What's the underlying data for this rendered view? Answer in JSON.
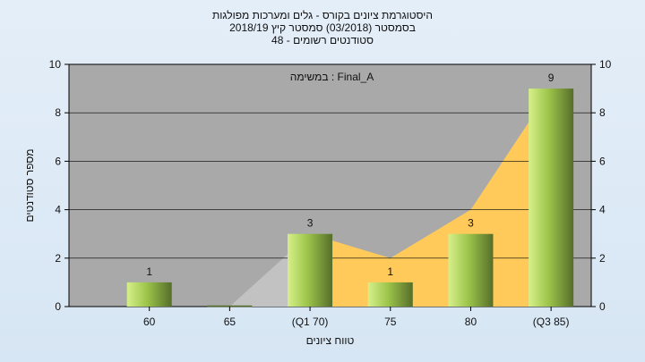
{
  "chart_data": {
    "type": "bar",
    "title_lines": [
      "היסטוגרמת ציונים בקורס - גלים ומערכות מפולגות",
      "בסמסטר  (03/2018)  סמסטר קיץ  2018/19",
      "סטודנטים רשומים - 48"
    ],
    "annotation": "במשימה : Final_A",
    "xlabel": "טווח ציונים",
    "ylabel": "מספר סטודנטים",
    "categories": [
      "60",
      "65",
      "(Q1 70)",
      "75",
      "80",
      "(Q3 85)"
    ],
    "values": [
      1,
      0,
      3,
      1,
      3,
      9
    ],
    "data_labels": [
      "1",
      "",
      "3",
      "1",
      "3",
      "9"
    ],
    "ylim": [
      0,
      10
    ],
    "yticks": [
      0,
      2,
      4,
      6,
      8,
      10
    ],
    "grid": true,
    "secondary_y_axis": true,
    "background_area": {
      "values": [
        0,
        0,
        3,
        2,
        4,
        9
      ],
      "iqr_start_index": 2,
      "iqr_end_index": 5
    },
    "colors": {
      "plot_bg": "#a9a9a9",
      "area_outside": "#c2c2c2",
      "area_iqr": "#ffca5a",
      "bar_light": "#d6f08a",
      "bar_mid": "#9cc44a",
      "bar_dark": "#566e2a",
      "gridline": "#000000"
    }
  }
}
